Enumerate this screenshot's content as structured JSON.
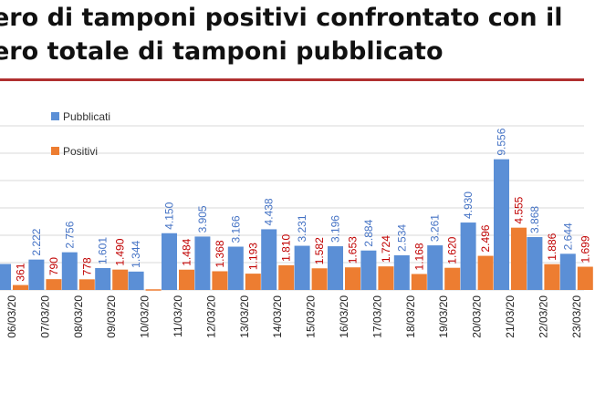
{
  "title": {
    "line1": "ero di tamponi positivi confrontato con il",
    "line2": "ero totale di tamponi pubblicato"
  },
  "colors": {
    "pubblicati": "#5b8fd6",
    "positivi": "#ed7d31",
    "pubblicati_label": "#4472c4",
    "positivi_label": "#c00000",
    "divider": "#b03030"
  },
  "chart_data": {
    "type": "bar",
    "categories": [
      "06/03/20",
      "07/03/20",
      "08/03/20",
      "09/03/20",
      "10/03/20",
      "11/03/20",
      "12/03/20",
      "13/03/20",
      "14/03/20",
      "15/03/20",
      "16/03/20",
      "17/03/20",
      "18/03/20",
      "19/03/20",
      "20/03/20",
      "21/03/20",
      "22/03/20",
      "23/03/20"
    ],
    "series": [
      {
        "name": "Pubblicati",
        "values": [
          1900,
          2222,
          2756,
          1601,
          1344,
          4150,
          3905,
          3166,
          4438,
          3231,
          3196,
          2884,
          2534,
          3261,
          4930,
          9556,
          3868,
          2644
        ],
        "labels": [
          "",
          "2.222",
          "2.756",
          "1.601",
          "1.344",
          "4.150",
          "3.905",
          "3.166",
          "4.438",
          "3.231",
          "3.196",
          "2.884",
          "2.534",
          "3.261",
          "4.930",
          "9.556",
          "3.868",
          "2.644"
        ]
      },
      {
        "name": "Positivi",
        "values": [
          361,
          790,
          778,
          1490,
          0,
          1484,
          1368,
          1193,
          1810,
          1582,
          1653,
          1724,
          1168,
          1620,
          2496,
          4555,
          1886,
          1699
        ],
        "labels": [
          "361",
          "790",
          "778",
          "1.490",
          "",
          "1.484",
          "1.368",
          "1.193",
          "1.810",
          "1.582",
          "1.653",
          "1.724",
          "1.168",
          "1.620",
          "2.496",
          "4.555",
          "1.886",
          "1.699"
        ]
      }
    ],
    "legend": {
      "position": "top-left",
      "items": [
        "Pubblicati",
        "Positivi"
      ]
    },
    "ylim": [
      0,
      12000
    ],
    "grid": true
  }
}
